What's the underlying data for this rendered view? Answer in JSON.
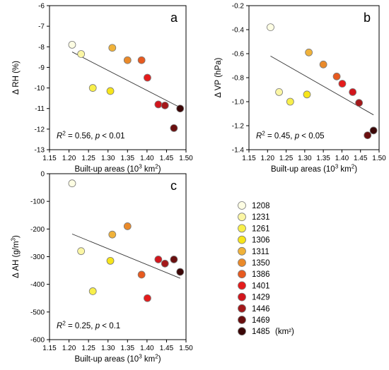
{
  "legend": {
    "unit_suffix": "(km²)",
    "entries": [
      {
        "label": "1208",
        "color": "#fdfde3"
      },
      {
        "label": "1231",
        "color": "#fbf6a4"
      },
      {
        "label": "1261",
        "color": "#f8ef4a"
      },
      {
        "label": "1306",
        "color": "#f7e51a"
      },
      {
        "label": "1311",
        "color": "#f0b23a"
      },
      {
        "label": "1350",
        "color": "#ea8a2a"
      },
      {
        "label": "1386",
        "color": "#e75a1f"
      },
      {
        "label": "1401",
        "color": "#e41b1b"
      },
      {
        "label": "1429",
        "color": "#d2151c"
      },
      {
        "label": "1446",
        "color": "#a3181a"
      },
      {
        "label": "1469",
        "color": "#6a0f0f"
      },
      {
        "label": "1485",
        "color": "#3a0606"
      }
    ]
  },
  "chart_data": [
    {
      "type": "scatter",
      "panel_label": "a",
      "ylabel": "Δ RH (%)",
      "xlabel": "Built-up areas (10³ km²)",
      "xlim": [
        1.15,
        1.5
      ],
      "ylim": [
        -13,
        -6
      ],
      "xticks": [
        "1.15",
        "1.20",
        "1.25",
        "1.30",
        "1.35",
        "1.40",
        "1.45",
        "1.50"
      ],
      "yticks": [
        "-13",
        "-12",
        "-11",
        "-10",
        "-9",
        "-8",
        "-7",
        "-6"
      ],
      "x": [
        1.208,
        1.231,
        1.261,
        1.306,
        1.311,
        1.35,
        1.386,
        1.401,
        1.429,
        1.446,
        1.469,
        1.485
      ],
      "y": [
        -7.9,
        -8.35,
        -10.0,
        -10.15,
        -8.05,
        -8.65,
        -8.65,
        -9.5,
        -10.8,
        -10.85,
        -11.95,
        -11.0
      ],
      "fit": {
        "x": [
          1.208,
          1.485
        ],
        "y": [
          -8.25,
          -10.95
        ]
      },
      "annotation": "R² = 0.56, p < 0.01"
    },
    {
      "type": "scatter",
      "panel_label": "b",
      "ylabel": "Δ VP (hPa)",
      "xlabel": "Built-up areas (10³ km²)",
      "xlim": [
        1.15,
        1.5
      ],
      "ylim": [
        -1.4,
        -0.2
      ],
      "xticks": [
        "1.15",
        "1.20",
        "1.25",
        "1.30",
        "1.35",
        "1.40",
        "1.45",
        "1.50"
      ],
      "yticks": [
        "-1.4",
        "-1.2",
        "-1.0",
        "-0.8",
        "-0.6",
        "-0.4",
        "-0.2"
      ],
      "x": [
        1.208,
        1.231,
        1.261,
        1.306,
        1.311,
        1.35,
        1.386,
        1.401,
        1.429,
        1.446,
        1.469,
        1.485
      ],
      "y": [
        -0.38,
        -0.92,
        -1.0,
        -0.94,
        -0.59,
        -0.69,
        -0.79,
        -0.85,
        -0.92,
        -1.01,
        -1.28,
        -1.24
      ],
      "fit": {
        "x": [
          1.208,
          1.485
        ],
        "y": [
          -0.62,
          -1.11
        ]
      },
      "annotation": "R² = 0.45, p < 0.05"
    },
    {
      "type": "scatter",
      "panel_label": "c",
      "ylabel": "Δ AH (g/m³)",
      "xlabel": "Built-up areas (10³ km²)",
      "xlim": [
        1.15,
        1.5
      ],
      "ylim": [
        -600,
        0
      ],
      "xticks": [
        "1.15",
        "1.20",
        "1.25",
        "1.30",
        "1.35",
        "1.40",
        "1.45",
        "1.50"
      ],
      "yticks": [
        "-600",
        "-500",
        "-400",
        "-300",
        "-200",
        "-100",
        "0"
      ],
      "x": [
        1.208,
        1.231,
        1.261,
        1.306,
        1.311,
        1.35,
        1.386,
        1.401,
        1.429,
        1.446,
        1.469,
        1.485
      ],
      "y": [
        -35,
        -280,
        -425,
        -315,
        -220,
        -190,
        -365,
        -450,
        -310,
        -325,
        -310,
        -355
      ],
      "fit": {
        "x": [
          1.208,
          1.485
        ],
        "y": [
          -218,
          -378
        ]
      },
      "annotation": "R² = 0.25, p < 0.1"
    }
  ]
}
